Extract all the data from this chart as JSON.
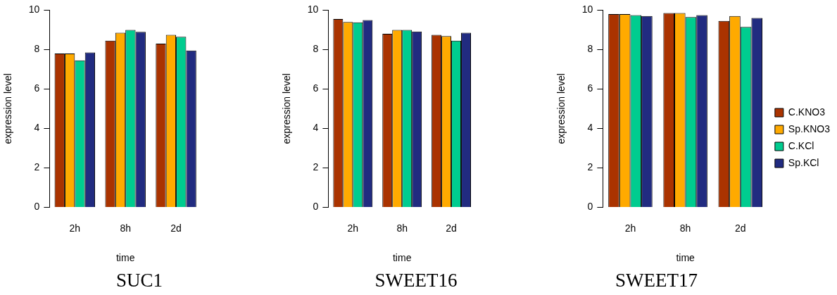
{
  "chart_data": [
    {
      "type": "bar",
      "title": "SUC1",
      "xlabel": "time",
      "ylabel": "expression level",
      "categories": [
        "2h",
        "8h",
        "2d"
      ],
      "ylim": [
        0,
        10
      ],
      "yticks": [
        0,
        2,
        4,
        6,
        8,
        10
      ],
      "grid": false,
      "legend": false,
      "series": [
        {
          "color": "#aa3300",
          "values": [
            7.8,
            8.45,
            8.3
          ]
        },
        {
          "color": "#ffaa00",
          "values": [
            7.8,
            8.85,
            8.75
          ]
        },
        {
          "color": "#00cc8f",
          "values": [
            7.45,
            9.0,
            8.65
          ]
        },
        {
          "color": "#212b80",
          "values": [
            7.85,
            8.9,
            7.95
          ]
        }
      ]
    },
    {
      "type": "bar",
      "title": "SWEET16",
      "xlabel": "time",
      "ylabel": "expression level",
      "categories": [
        "2h",
        "8h",
        "2d"
      ],
      "ylim": [
        0,
        10
      ],
      "yticks": [
        0,
        2,
        4,
        6,
        8,
        10
      ],
      "grid": false,
      "legend": false,
      "series": [
        {
          "color": "#aa3300",
          "values": [
            9.55,
            8.8,
            8.75
          ]
        },
        {
          "color": "#ffaa00",
          "values": [
            9.4,
            9.0,
            8.68
          ]
        },
        {
          "color": "#00cc8f",
          "values": [
            9.38,
            9.0,
            8.45
          ]
        },
        {
          "color": "#212b80",
          "values": [
            9.5,
            8.92,
            8.85
          ]
        }
      ]
    },
    {
      "type": "bar",
      "title": "SWEET17",
      "xlabel": "time",
      "ylabel": "expression level",
      "categories": [
        "2h",
        "8h",
        "2d"
      ],
      "ylim": [
        0,
        10
      ],
      "yticks": [
        0,
        2,
        4,
        6,
        8,
        10
      ],
      "grid": false,
      "legend": "right",
      "series": [
        {
          "name": "C.KNO3",
          "color": "#aa3300",
          "values": [
            9.8,
            9.85,
            9.45
          ]
        },
        {
          "name": "Sp.KNO3",
          "color": "#ffaa00",
          "values": [
            9.8,
            9.85,
            9.7
          ]
        },
        {
          "name": "C.KCl",
          "color": "#00cc8f",
          "values": [
            9.75,
            9.65,
            9.15
          ]
        },
        {
          "name": "Sp.KCl",
          "color": "#212b80",
          "values": [
            9.7,
            9.75,
            9.6
          ]
        }
      ]
    }
  ]
}
